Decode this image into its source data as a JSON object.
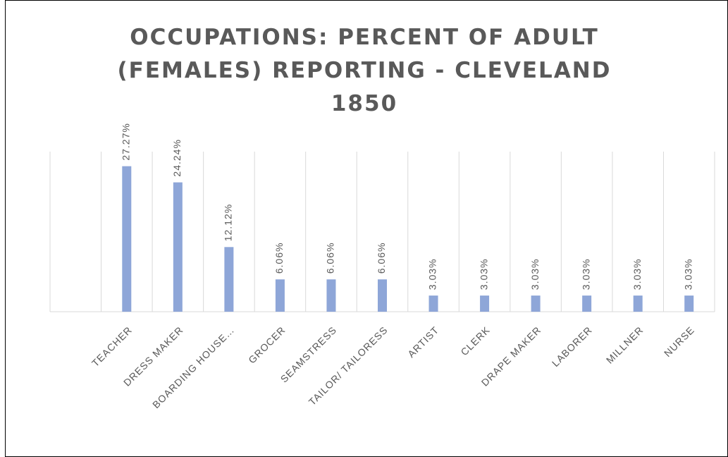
{
  "chart_data": {
    "type": "bar",
    "title": "OCCUPATIONS: PERCENT OF ADULT (FEMALES) REPORTING - CLEVELAND 1850",
    "categories": [
      null,
      "TEACHER",
      "DRESS MAKER",
      "BOARDING HOUSE…",
      "GROCER",
      "SEAMSTRESS",
      "TAILOR/ TAILORESS",
      "ARTIST",
      "CLERK",
      "DRAPE MAKER",
      "LABORER",
      "MILLNER",
      "NURSE"
    ],
    "values": [
      null,
      27.27,
      24.24,
      12.12,
      6.06,
      6.06,
      6.06,
      3.03,
      3.03,
      3.03,
      3.03,
      3.03,
      3.03
    ],
    "value_labels": [
      null,
      "27.27%",
      "24.24%",
      "12.12%",
      "6.06%",
      "6.06%",
      "6.06%",
      "3.03%",
      "3.03%",
      "3.03%",
      "3.03%",
      "3.03%",
      "3.03%"
    ],
    "color": "#8ea6d8",
    "ylim": [
      0,
      30
    ],
    "grid": true
  }
}
